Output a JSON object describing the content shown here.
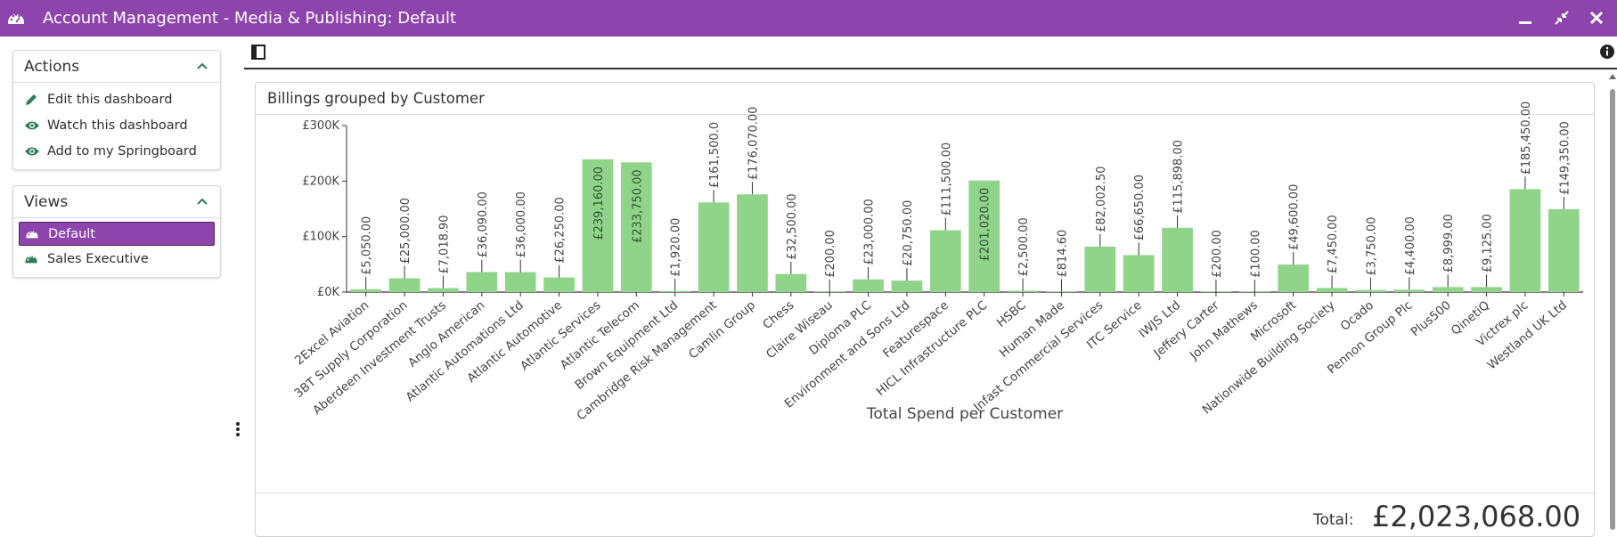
{
  "window": {
    "title": "Account Management - Media & Publishing: Default",
    "accent_color": "#8e44ad",
    "icons": [
      "dashboard-icon",
      "minimize-icon",
      "restore-icon",
      "close-icon"
    ]
  },
  "sidebar": {
    "actions": {
      "title": "Actions",
      "items": [
        {
          "label": "Edit this dashboard",
          "icon": "pencil-icon"
        },
        {
          "label": "Watch this dashboard",
          "icon": "eye-icon"
        },
        {
          "label": "Add to my Springboard",
          "icon": "eye-icon"
        }
      ]
    },
    "views": {
      "title": "Views",
      "items": [
        {
          "label": "Default",
          "icon": "dashboard-icon",
          "active": true
        },
        {
          "label": "Sales Executive",
          "icon": "dashboard-icon",
          "active": false
        }
      ]
    }
  },
  "card": {
    "title": "Billings grouped by Customer",
    "total_label": "Total:",
    "total_value": "£2,023,068.00"
  },
  "chart_data": {
    "type": "bar",
    "title": "",
    "xlabel": "Total Spend per Customer",
    "ylabel": "",
    "ylim": [
      0,
      300000
    ],
    "yticks": [
      0,
      100000,
      200000,
      300000
    ],
    "ytick_labels": [
      "£0K",
      "£100K",
      "£200K",
      "£300K"
    ],
    "bar_color": "#90d48a",
    "grid": false,
    "categories": [
      "2Excel Aviation",
      "3BT Supply Corporation",
      "Aberdeen Investment Trusts",
      "Anglo American",
      "Atlantic Automations Ltd",
      "Atlantic Automotive",
      "Atlantic Services",
      "Atlantic Telecom",
      "Brown Equipment Ltd",
      "Cambridge Risk Management",
      "Camlin Group",
      "Chess",
      "Claire Wiseau",
      "Diploma PLC",
      "Environment and Sons Ltd",
      "Featurespace",
      "HICL Infrastructure PLC",
      "HSBC",
      "Human Made",
      "Infast Commercial Services",
      "ITC Service",
      "IWJS Ltd",
      "Jeffery Carter",
      "John Mathews",
      "Microsoft",
      "Nationwide Building Society",
      "Ocado",
      "Pennon Group Plc",
      "Plus500",
      "QinetiQ",
      "Victrex plc",
      "Westland UK Ltd"
    ],
    "values": [
      5050,
      25000,
      7018.9,
      36090,
      36000,
      26250,
      239160,
      233750,
      1920,
      161500,
      176070,
      32500,
      200,
      23000,
      20750,
      111500,
      201020,
      2500,
      814.6,
      82002.5,
      66650,
      115898,
      200,
      100,
      49600,
      7450,
      3750,
      4400,
      8999,
      9125,
      185450,
      149350
    ],
    "data_labels": [
      "£5,050.00",
      "£25,000.00",
      "£7,018.90",
      "£36,090.00",
      "£36,000.00",
      "£26,250.00",
      "£239,160.00",
      "£233,750.00",
      "£1,920.00",
      "£161,500.0",
      "£176,070.00",
      "£32,500.00",
      "£200.00",
      "£23,000.00",
      "£20,750.00",
      "£111,500.00",
      "£201,020.00",
      "£2,500.00",
      "£814.60",
      "£82,002.50",
      "£66,650.00",
      "£115,898.00",
      "£200.00",
      "£100.00",
      "£49,600.00",
      "£7,450.00",
      "£3,750.00",
      "£4,400.00",
      "£8,999.00",
      "£9,125.00",
      "£185,450.00",
      "£149,350.00"
    ]
  }
}
